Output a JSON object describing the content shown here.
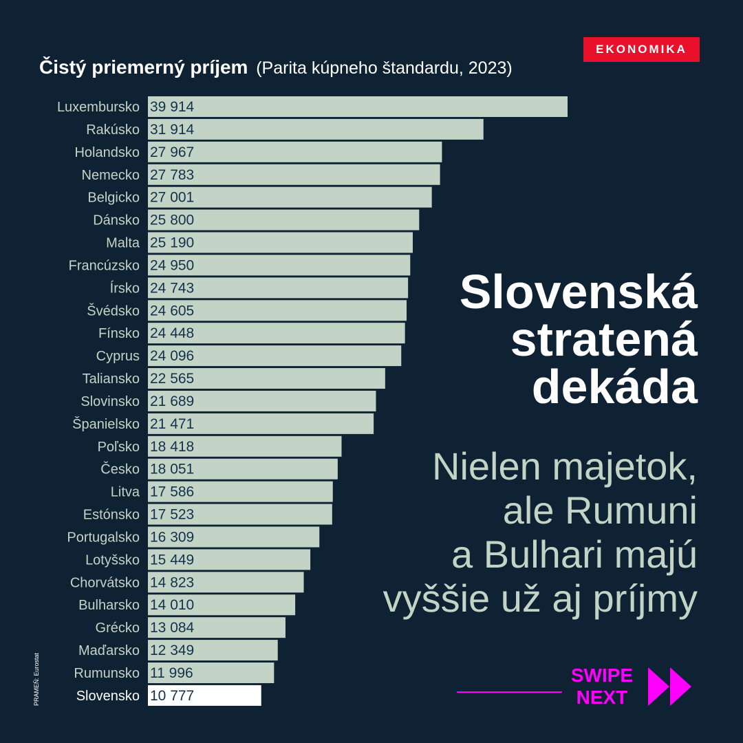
{
  "badge": "EKONOMIKA",
  "title": {
    "main": "Čistý priemerný príjem",
    "sub": "(Parita kúpneho štandardu, 2023)"
  },
  "headline": [
    "Slovenská",
    "stratená",
    "dekáda"
  ],
  "subheadline": [
    "Nielen majetok,",
    "ale Rumuni",
    "a Bulhari majú",
    "vyššie už aj príjmy"
  ],
  "source": "PRAMEŇ: Eurostat",
  "swipe": {
    "line1": "SWIPE",
    "line2": "NEXT",
    "icon": "double-chevron-right-icon"
  },
  "colors": {
    "background": "#0f2233",
    "bar": "#c3d4c6",
    "highlight_bar": "#ffffff",
    "badge": "#e8102a",
    "accent": "#ff00ff"
  },
  "chart_data": {
    "type": "bar",
    "orientation": "horizontal",
    "title": "Čistý priemerný príjem (Parita kúpneho štandardu, 2023)",
    "categories": [
      "Luxembursko",
      "Rakúsko",
      "Holandsko",
      "Nemecko",
      "Belgicko",
      "Dánsko",
      "Malta",
      "Francúzsko",
      "Írsko",
      "Švédsko",
      "Fínsko",
      "Cyprus",
      "Taliansko",
      "Slovinsko",
      "Španielsko",
      "Poľsko",
      "Česko",
      "Litva",
      "Estónsko",
      "Portugalsko",
      "Lotyšsko",
      "Chorvátsko",
      "Bulharsko",
      "Grécko",
      "Maďarsko",
      "Rumunsko",
      "Slovensko"
    ],
    "values": [
      39914,
      31914,
      27967,
      27783,
      27001,
      25800,
      25190,
      24950,
      24743,
      24605,
      24448,
      24096,
      22565,
      21689,
      21471,
      18418,
      18051,
      17586,
      17523,
      16309,
      15449,
      14823,
      14010,
      13084,
      12349,
      11996,
      10777
    ],
    "value_labels": [
      "39 914",
      "31 914",
      "27 967",
      "27 783",
      "27 001",
      "25 800",
      "25 190",
      "24 950",
      "24 743",
      "24 605",
      "24 448",
      "24 096",
      "22 565",
      "21 689",
      "21 471",
      "18 418",
      "18 051",
      "17 586",
      "17 523",
      "16 309",
      "15 449",
      "14 823",
      "14 010",
      "13 084",
      "12 349",
      "11 996",
      "10 777"
    ],
    "highlight": "Slovensko",
    "xlim": [
      0,
      39914
    ],
    "grid": false,
    "legend": "none"
  }
}
